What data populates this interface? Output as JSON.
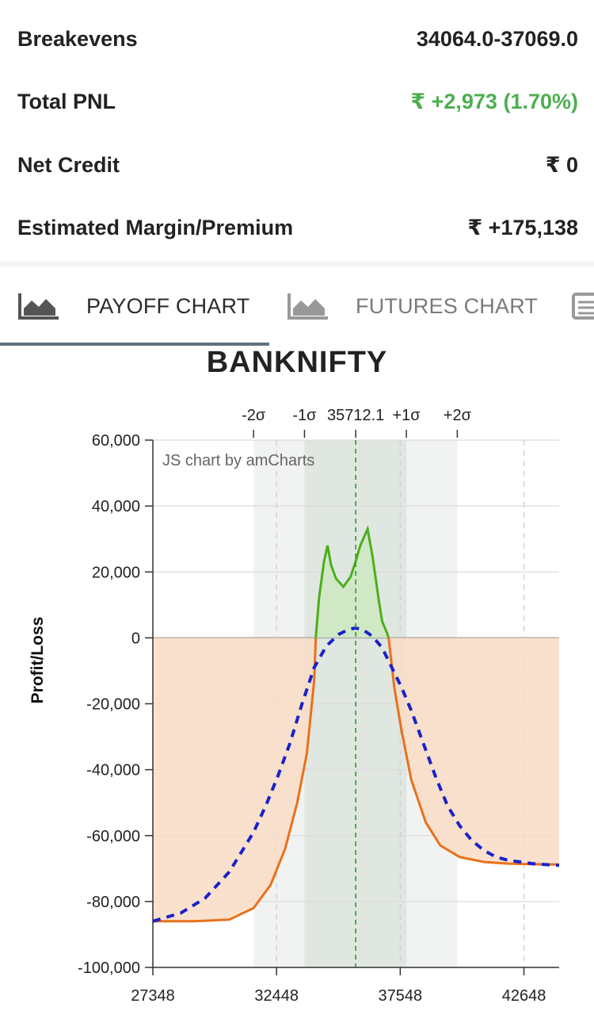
{
  "summary": {
    "breakevens_label": "Breakevens",
    "breakevens_value": "34064.0-37069.0",
    "total_pnl_label": "Total PNL",
    "total_pnl_value": "₹ +2,973 (1.70%)",
    "net_credit_label": "Net Credit",
    "net_credit_value": "₹ 0",
    "margin_label": "Estimated Margin/Premium",
    "margin_value": "₹ +175,138"
  },
  "tabs": {
    "payoff_label": "PAYOFF CHART",
    "futures_label": "FUTURES CHART"
  },
  "colors": {
    "profit_line": "#4caf1a",
    "profit_fill": "#cfe8c4",
    "loss_line": "#e8711c",
    "loss_fill": "#f9dcc6",
    "expected_line": "#1b22c8",
    "spot_line": "#2e9e2e",
    "band1": "#dfe7e0",
    "band2": "#f0f3f1"
  },
  "chart_data": {
    "type": "area",
    "title": "BANKNIFTY",
    "watermark": "JS chart by amCharts",
    "ylabel": "Profit/Loss",
    "xlim": [
      27348,
      44100
    ],
    "ylim": [
      -100000,
      60000
    ],
    "x_ticks": [
      "27348",
      "32448",
      "37548",
      "42648"
    ],
    "y_ticks": [
      "60,000",
      "40,000",
      "20,000",
      "0",
      "-20,000",
      "-40,000",
      "-60,000",
      "-80,000",
      "-100,000"
    ],
    "spot": 35712.1,
    "spot_label": "35712.1",
    "sigma_labels": [
      "-2σ",
      "-1σ",
      "+1σ",
      "+2σ"
    ],
    "sigma_levels": [
      31500,
      33600,
      37800,
      39900
    ],
    "series": [
      {
        "type": "payoff_at_expiry",
        "x": [
          27348,
          29000,
          30500,
          31500,
          32200,
          32800,
          33300,
          33700,
          34000,
          34064,
          34200,
          34400,
          34550,
          34700,
          34900,
          35200,
          35500,
          35700,
          35900,
          36200,
          36400,
          36650,
          36800,
          37000,
          37069,
          37300,
          37600,
          38000,
          38600,
          39200,
          40000,
          41000,
          42000,
          43000,
          44100
        ],
        "y": [
          -86000,
          -86000,
          -85500,
          -82000,
          -75000,
          -64000,
          -50000,
          -35000,
          -13000,
          0,
          12000,
          23000,
          28000,
          22000,
          18000,
          15500,
          18500,
          23000,
          28000,
          33000,
          25000,
          12000,
          5000,
          1500,
          0,
          -15000,
          -28000,
          -43000,
          -56000,
          -63000,
          -66500,
          -68000,
          -68500,
          -68700,
          -68800
        ]
      },
      {
        "type": "payoff_today",
        "x": [
          27348,
          28500,
          29500,
          30500,
          31500,
          32000,
          32500,
          33000,
          33500,
          34000,
          34500,
          35000,
          35400,
          35700,
          36000,
          36400,
          36800,
          37200,
          37600,
          38000,
          38500,
          39000,
          39500,
          40000,
          40500,
          41000,
          41500,
          42000,
          42500,
          43000,
          43500,
          44100
        ],
        "y": [
          -86000,
          -83500,
          -79000,
          -71000,
          -59000,
          -51000,
          -42000,
          -32000,
          -20000,
          -9000,
          -2500,
          1000,
          2500,
          3000,
          2500,
          500,
          -3000,
          -9000,
          -15000,
          -22000,
          -32000,
          -42000,
          -51000,
          -57000,
          -61500,
          -64500,
          -66500,
          -67500,
          -68000,
          -68500,
          -68800,
          -69000
        ]
      }
    ]
  }
}
